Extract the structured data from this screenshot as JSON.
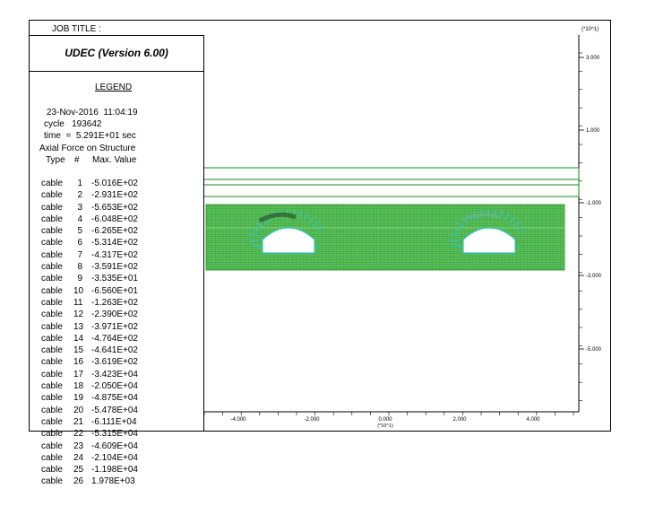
{
  "header": {
    "job_title_label": "JOB TITLE :",
    "y_scale": "(*10^1)"
  },
  "legend": {
    "app_title": "UDEC (Version 6.00)",
    "heading": "LEGEND",
    "date_line": "23-Nov-2016  11:04:19",
    "cycle_line": "cycle   193642",
    "time_line": "time  =  5.291E+01 sec",
    "quantity": "Axial Force on Structure",
    "col_type": "Type",
    "col_num": "#",
    "col_max": "Max. Value",
    "rows": [
      {
        "type": "cable",
        "num": "1",
        "value": "-5.016E+02"
      },
      {
        "type": "cable",
        "num": "2",
        "value": "-2.931E+02"
      },
      {
        "type": "cable",
        "num": "3",
        "value": "-5.653E+02"
      },
      {
        "type": "cable",
        "num": "4",
        "value": "-6.048E+02"
      },
      {
        "type": "cable",
        "num": "5",
        "value": "-6.265E+02"
      },
      {
        "type": "cable",
        "num": "6",
        "value": "-5.314E+02"
      },
      {
        "type": "cable",
        "num": "7",
        "value": "-4.317E+02"
      },
      {
        "type": "cable",
        "num": "8",
        "value": "-3.591E+02"
      },
      {
        "type": "cable",
        "num": "9",
        "value": "-3.535E+01"
      },
      {
        "type": "cable",
        "num": "10",
        "value": "-6.560E+01"
      },
      {
        "type": "cable",
        "num": "11",
        "value": "-1.263E+02"
      },
      {
        "type": "cable",
        "num": "12",
        "value": "-2.390E+02"
      },
      {
        "type": "cable",
        "num": "13",
        "value": "-3.971E+02"
      },
      {
        "type": "cable",
        "num": "14",
        "value": "-4.764E+02"
      },
      {
        "type": "cable",
        "num": "15",
        "value": "-4.641E+02"
      },
      {
        "type": "cable",
        "num": "16",
        "value": "-3.619E+02"
      },
      {
        "type": "cable",
        "num": "17",
        "value": "-3.423E+04"
      },
      {
        "type": "cable",
        "num": "18",
        "value": "-2.050E+04"
      },
      {
        "type": "cable",
        "num": "19",
        "value": "-4.875E+04"
      },
      {
        "type": "cable",
        "num": "20",
        "value": "-5.478E+04"
      },
      {
        "type": "cable",
        "num": "21",
        "value": "-6.111E+04"
      },
      {
        "type": "cable",
        "num": "22",
        "value": "-5.315E+04"
      },
      {
        "type": "cable",
        "num": "23",
        "value": "-4.609E+04"
      },
      {
        "type": "cable",
        "num": "24",
        "value": "-2.104E+04"
      },
      {
        "type": "cable",
        "num": "25",
        "value": "-1.198E+04"
      },
      {
        "type": "cable",
        "num": "26",
        "value": "1.978E+03"
      }
    ]
  },
  "plot": {
    "x_ticks": [
      "-4.000",
      "-2.000",
      "0.000",
      "2.000",
      "4.000"
    ],
    "x_scale": "(*10^1)",
    "y_ticks": [
      "3.000",
      "1.000",
      "-1.000",
      "-3.000",
      "-5.000"
    ],
    "colors": {
      "mesh": "#2ea02e",
      "line": "#1a8c1a",
      "cable": "#35c8c8",
      "dark": "#2d5c2d"
    }
  }
}
